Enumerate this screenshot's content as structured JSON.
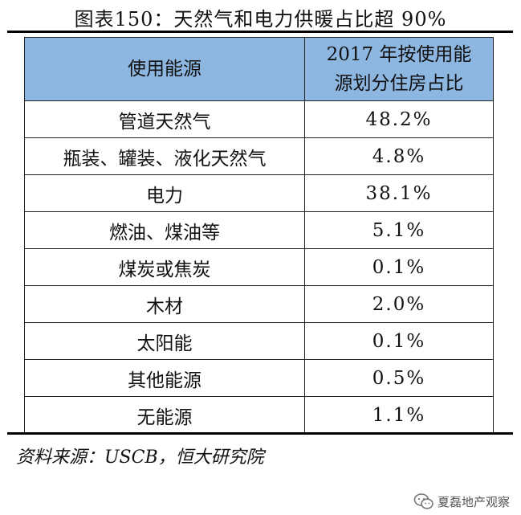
{
  "title": "图表150：天然气和电力供暖占比超 90%",
  "table": {
    "header": {
      "col1": "使用能源",
      "col2_line1": "2017 年按使用能",
      "col2_line2": "源划分住房占比"
    },
    "rows": [
      {
        "source": "管道天然气",
        "share": "48.2%"
      },
      {
        "source": "瓶装、罐装、液化天然气",
        "share": "4.8%"
      },
      {
        "source": "电力",
        "share": "38.1%"
      },
      {
        "source": "燃油、煤油等",
        "share": "5.1%"
      },
      {
        "source": "煤炭或焦炭",
        "share": "0.1%"
      },
      {
        "source": "木材",
        "share": "2.0%"
      },
      {
        "source": "太阳能",
        "share": "0.1%"
      },
      {
        "source": "其他能源",
        "share": "0.5%"
      },
      {
        "source": "无能源",
        "share": "1.1%"
      }
    ]
  },
  "footer": {
    "source": "资料来源：USCB，恒大研究院",
    "watermark": "夏磊地产观察",
    "watermark_icon": "wechat-icon"
  }
}
